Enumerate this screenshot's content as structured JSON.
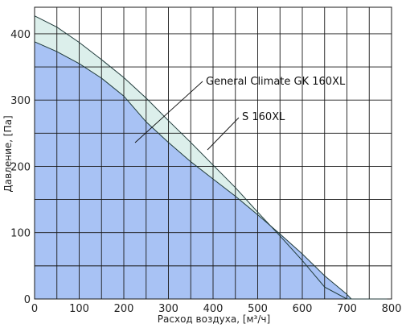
{
  "chart_data": {
    "type": "area",
    "title": "",
    "xlabel": "Расход воздуха, [м³/ч]",
    "ylabel": "Давление, [Па]",
    "xlim": [
      0,
      800
    ],
    "ylim": [
      0,
      440
    ],
    "xticks": [
      0,
      100,
      200,
      300,
      400,
      500,
      600,
      700,
      800
    ],
    "yticks": [
      0,
      100,
      200,
      300,
      400
    ],
    "xtick_labels": [
      "0",
      "100",
      "200",
      "300",
      "400",
      "500",
      "600",
      "700",
      "800"
    ],
    "ytick_labels": [
      "0",
      "100",
      "200",
      "300",
      "400"
    ],
    "x_grid_step": 50,
    "y_grid_step": 50,
    "grid": true,
    "series": [
      {
        "name": "General Climate GK 160XL",
        "color": "#dcefeb",
        "x": [
          0,
          50,
          100,
          150,
          200,
          250,
          300,
          350,
          400,
          450,
          500,
          550,
          600,
          650,
          700,
          750,
          790
        ],
        "y": [
          427,
          410,
          387,
          361,
          334,
          303,
          269,
          236,
          202,
          168,
          131,
          95,
          58,
          18,
          0,
          0,
          0
        ]
      },
      {
        "name": "S 160XL",
        "color": "#a8c2f4",
        "x": [
          0,
          50,
          100,
          150,
          200,
          250,
          300,
          350,
          400,
          450,
          500,
          550,
          600,
          650,
          700,
          710
        ],
        "y": [
          388,
          373,
          355,
          333,
          306,
          267,
          236,
          207,
          181,
          155,
          127,
          98,
          68,
          35,
          7,
          0
        ]
      }
    ],
    "annotations": [
      {
        "text": "General Climate GK 160XL",
        "series": "General Climate GK 160XL"
      },
      {
        "text": "S 160XL",
        "series": "S 160XL"
      }
    ]
  }
}
